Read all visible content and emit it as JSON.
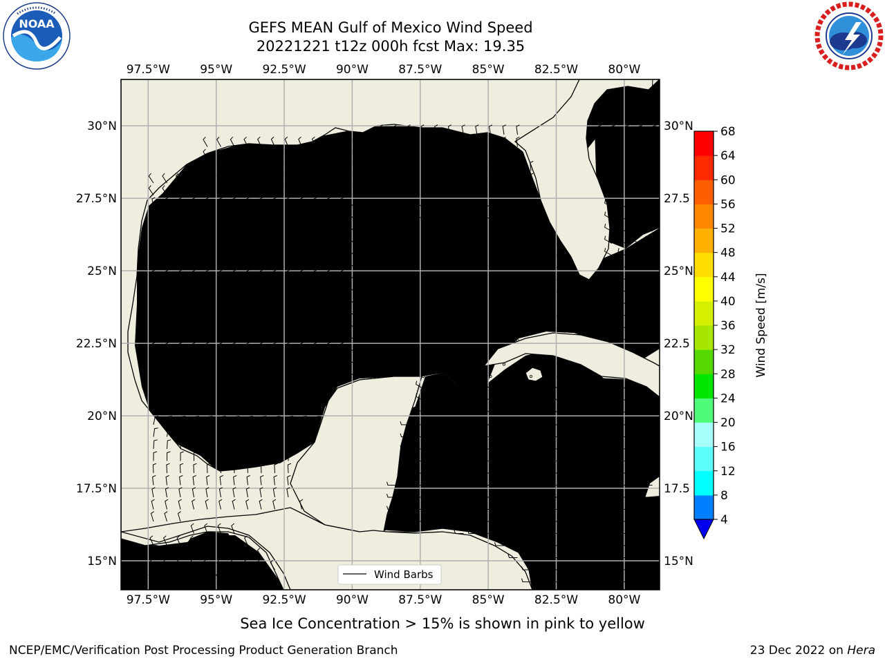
{
  "title_line1": "GEFS MEAN Gulf of Mexico Wind Speed",
  "title_line2": "20221221 t12z 000h fcst   Max: 19.35",
  "caption": "Sea Ice Concentration > 15% is shown in pink to yellow",
  "footer_left": "NCEP/EMC/Verification Post Processing Product Generation Branch",
  "footer_right_date": "23 Dec 2022 on ",
  "footer_right_host": "Hera",
  "logos": {
    "left": {
      "text": "NOAA",
      "ring_text": "NATIONAL OCEANIC AND ATMOSPHERIC ADMINISTRATION · U.S. DEPARTMENT OF COMMERCE"
    },
    "right": {
      "ring_text": "NATIONAL WEATHER SERVICE"
    }
  },
  "chart_data": {
    "type": "heatmap",
    "variable": "Wind Speed",
    "extent": {
      "lon": [
        -98.5,
        -78.7
      ],
      "lat": [
        14,
        31.6
      ]
    },
    "lon_ticks": [
      -97.5,
      -95,
      -92.5,
      -90,
      -87.5,
      -85,
      -82.5,
      -80
    ],
    "lon_tick_labels": [
      "97.5°W",
      "95°W",
      "92.5°W",
      "90°W",
      "87.5°W",
      "85°W",
      "82.5°W",
      "80°W"
    ],
    "lat_ticks": [
      15,
      17.5,
      20,
      22.5,
      25,
      27.5,
      30
    ],
    "lat_tick_labels_left": [
      "15°N",
      "17.5°N",
      "20°N",
      "22.5°N",
      "25°N",
      "27.5°N",
      "30°N"
    ],
    "lat_tick_labels_right": [
      "15°N",
      "17.5",
      "20°N",
      "22.5",
      "25°N",
      "27.5",
      "30°N"
    ],
    "grid": true,
    "legend": {
      "entries": [
        "Wind Barbs"
      ],
      "placement": "lower-center"
    },
    "colorbar": {
      "label": "Wind Speed [m/s]",
      "levels": [
        4,
        8,
        12,
        16,
        20,
        24,
        28,
        32,
        36,
        40,
        44,
        48,
        52,
        56,
        60,
        64,
        68
      ],
      "tick_labels": [
        "4",
        "8",
        "12",
        "16",
        "20",
        "24",
        "28",
        "32",
        "36",
        "40",
        "44",
        "48",
        "52",
        "56",
        "60",
        "64",
        "68"
      ],
      "colors": [
        "#0000ee",
        "#0080ff",
        "#00ffff",
        "#5cfcfc",
        "#a6fffb",
        "#50fa7b",
        "#00e600",
        "#55d800",
        "#a6e600",
        "#d4f000",
        "#ffff00",
        "#ffdd00",
        "#ffb000",
        "#ff8800",
        "#ff5e00",
        "#ff2a00",
        "#ff0000"
      ],
      "extend": "min"
    },
    "land_color": "#efedde",
    "max_value": 19.35
  }
}
